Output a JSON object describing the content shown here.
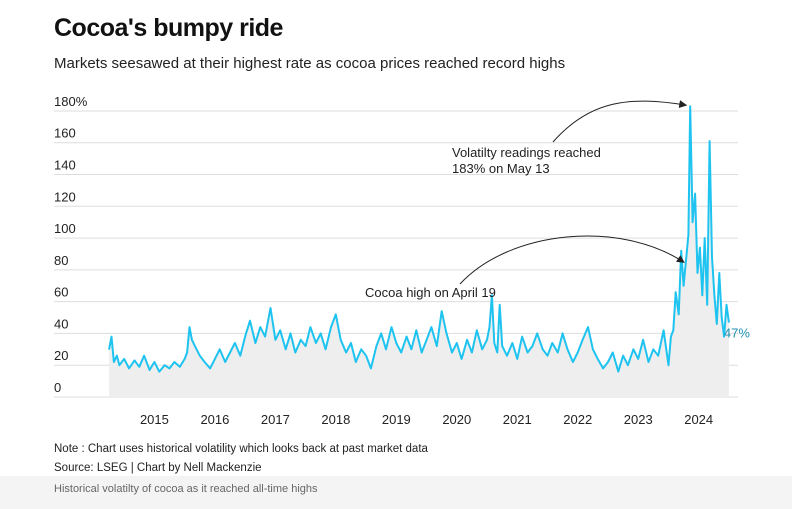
{
  "title": "Cocoa's bumpy ride",
  "subtitle": "Markets seesawed at their highest rate as cocoa prices reached record highs",
  "note": "Note : Chart uses historical volatility which looks back at past market data",
  "source": "Source: LSEG | Chart by Nell Mackenzie",
  "caption": "Historical volatilty of cocoa as it reached all-time highs",
  "colors": {
    "line": "#1ec3f0",
    "area": "#eeeeee",
    "grid": "#dddddd",
    "end_label": "#1f8fb2"
  },
  "chart_data": {
    "type": "line",
    "title": "Cocoa's bumpy ride",
    "series": [
      {
        "color": "#1ec3f0",
        "points": [
          [
            2014.75,
            30
          ],
          [
            2014.79,
            38
          ],
          [
            2014.83,
            22
          ],
          [
            2014.88,
            26
          ],
          [
            2014.92,
            20
          ],
          [
            2015.0,
            24
          ],
          [
            2015.08,
            18
          ],
          [
            2015.17,
            23
          ],
          [
            2015.25,
            19
          ],
          [
            2015.33,
            26
          ],
          [
            2015.42,
            17
          ],
          [
            2015.5,
            22
          ],
          [
            2015.58,
            16
          ],
          [
            2015.67,
            20
          ],
          [
            2015.75,
            18
          ],
          [
            2015.83,
            22
          ],
          [
            2015.92,
            19
          ],
          [
            2016.0,
            24
          ],
          [
            2016.04,
            28
          ],
          [
            2016.08,
            44
          ],
          [
            2016.12,
            36
          ],
          [
            2016.17,
            32
          ],
          [
            2016.25,
            26
          ],
          [
            2016.33,
            22
          ],
          [
            2016.42,
            18
          ],
          [
            2016.5,
            24
          ],
          [
            2016.58,
            30
          ],
          [
            2016.67,
            22
          ],
          [
            2016.75,
            28
          ],
          [
            2016.83,
            34
          ],
          [
            2016.92,
            26
          ],
          [
            2017.0,
            38
          ],
          [
            2017.08,
            48
          ],
          [
            2017.17,
            34
          ],
          [
            2017.25,
            44
          ],
          [
            2017.33,
            38
          ],
          [
            2017.42,
            56
          ],
          [
            2017.5,
            36
          ],
          [
            2017.58,
            42
          ],
          [
            2017.67,
            30
          ],
          [
            2017.75,
            40
          ],
          [
            2017.83,
            28
          ],
          [
            2017.92,
            36
          ],
          [
            2018.0,
            32
          ],
          [
            2018.08,
            44
          ],
          [
            2018.17,
            34
          ],
          [
            2018.25,
            40
          ],
          [
            2018.33,
            30
          ],
          [
            2018.42,
            44
          ],
          [
            2018.5,
            52
          ],
          [
            2018.58,
            36
          ],
          [
            2018.67,
            28
          ],
          [
            2018.75,
            34
          ],
          [
            2018.83,
            22
          ],
          [
            2018.92,
            30
          ],
          [
            2019.0,
            26
          ],
          [
            2019.08,
            18
          ],
          [
            2019.17,
            32
          ],
          [
            2019.25,
            40
          ],
          [
            2019.33,
            30
          ],
          [
            2019.42,
            44
          ],
          [
            2019.5,
            34
          ],
          [
            2019.58,
            28
          ],
          [
            2019.67,
            38
          ],
          [
            2019.75,
            30
          ],
          [
            2019.83,
            42
          ],
          [
            2019.92,
            28
          ],
          [
            2020.0,
            36
          ],
          [
            2020.08,
            44
          ],
          [
            2020.17,
            32
          ],
          [
            2020.25,
            54
          ],
          [
            2020.33,
            40
          ],
          [
            2020.42,
            28
          ],
          [
            2020.5,
            34
          ],
          [
            2020.58,
            24
          ],
          [
            2020.67,
            36
          ],
          [
            2020.75,
            28
          ],
          [
            2020.83,
            42
          ],
          [
            2020.92,
            30
          ],
          [
            2021.0,
            36
          ],
          [
            2021.04,
            44
          ],
          [
            2021.08,
            64
          ],
          [
            2021.12,
            34
          ],
          [
            2021.17,
            28
          ],
          [
            2021.21,
            58
          ],
          [
            2021.25,
            32
          ],
          [
            2021.33,
            26
          ],
          [
            2021.42,
            34
          ],
          [
            2021.5,
            24
          ],
          [
            2021.58,
            38
          ],
          [
            2021.67,
            28
          ],
          [
            2021.75,
            32
          ],
          [
            2021.83,
            40
          ],
          [
            2021.92,
            30
          ],
          [
            2022.0,
            26
          ],
          [
            2022.08,
            34
          ],
          [
            2022.17,
            28
          ],
          [
            2022.25,
            40
          ],
          [
            2022.33,
            30
          ],
          [
            2022.42,
            22
          ],
          [
            2022.5,
            28
          ],
          [
            2022.58,
            36
          ],
          [
            2022.67,
            44
          ],
          [
            2022.75,
            30
          ],
          [
            2022.83,
            24
          ],
          [
            2022.92,
            18
          ],
          [
            2023.0,
            22
          ],
          [
            2023.08,
            28
          ],
          [
            2023.17,
            16
          ],
          [
            2023.25,
            26
          ],
          [
            2023.33,
            20
          ],
          [
            2023.42,
            30
          ],
          [
            2023.5,
            24
          ],
          [
            2023.58,
            36
          ],
          [
            2023.67,
            22
          ],
          [
            2023.75,
            30
          ],
          [
            2023.83,
            26
          ],
          [
            2023.92,
            42
          ],
          [
            2024.0,
            20
          ],
          [
            2024.04,
            38
          ],
          [
            2024.08,
            42
          ],
          [
            2024.12,
            66
          ],
          [
            2024.17,
            52
          ],
          [
            2024.21,
            92
          ],
          [
            2024.25,
            70
          ],
          [
            2024.29,
            86
          ],
          [
            2024.33,
            102
          ],
          [
            2024.36,
            183
          ],
          [
            2024.4,
            110
          ],
          [
            2024.44,
            128
          ],
          [
            2024.48,
            78
          ],
          [
            2024.52,
            94
          ],
          [
            2024.56,
            64
          ],
          [
            2024.6,
            100
          ],
          [
            2024.64,
            58
          ],
          [
            2024.68,
            161
          ],
          [
            2024.72,
            88
          ],
          [
            2024.76,
            64
          ],
          [
            2024.8,
            46
          ],
          [
            2024.84,
            78
          ],
          [
            2024.88,
            50
          ],
          [
            2024.92,
            38
          ],
          [
            2024.96,
            58
          ],
          [
            2025.0,
            47
          ]
        ]
      }
    ],
    "x_ticks": [
      "2015",
      "2016",
      "2017",
      "2018",
      "2019",
      "2020",
      "2021",
      "2022",
      "2023",
      "2024"
    ],
    "y_ticks": [
      "0",
      "20",
      "40",
      "60",
      "80",
      "100",
      "120",
      "140",
      "160",
      "180%"
    ],
    "xlim": [
      2014.6,
      2025.15
    ],
    "ylim": [
      0,
      185
    ],
    "end_label": "47%",
    "grid": true,
    "annotations": [
      {
        "lines": [
          "Volatilty readings reached",
          "183% on May 13"
        ],
        "x": 2024.36,
        "y": 183
      },
      {
        "lines": [
          "Cocoa high on April 19"
        ],
        "x": 2024.29,
        "y": 86
      }
    ]
  }
}
